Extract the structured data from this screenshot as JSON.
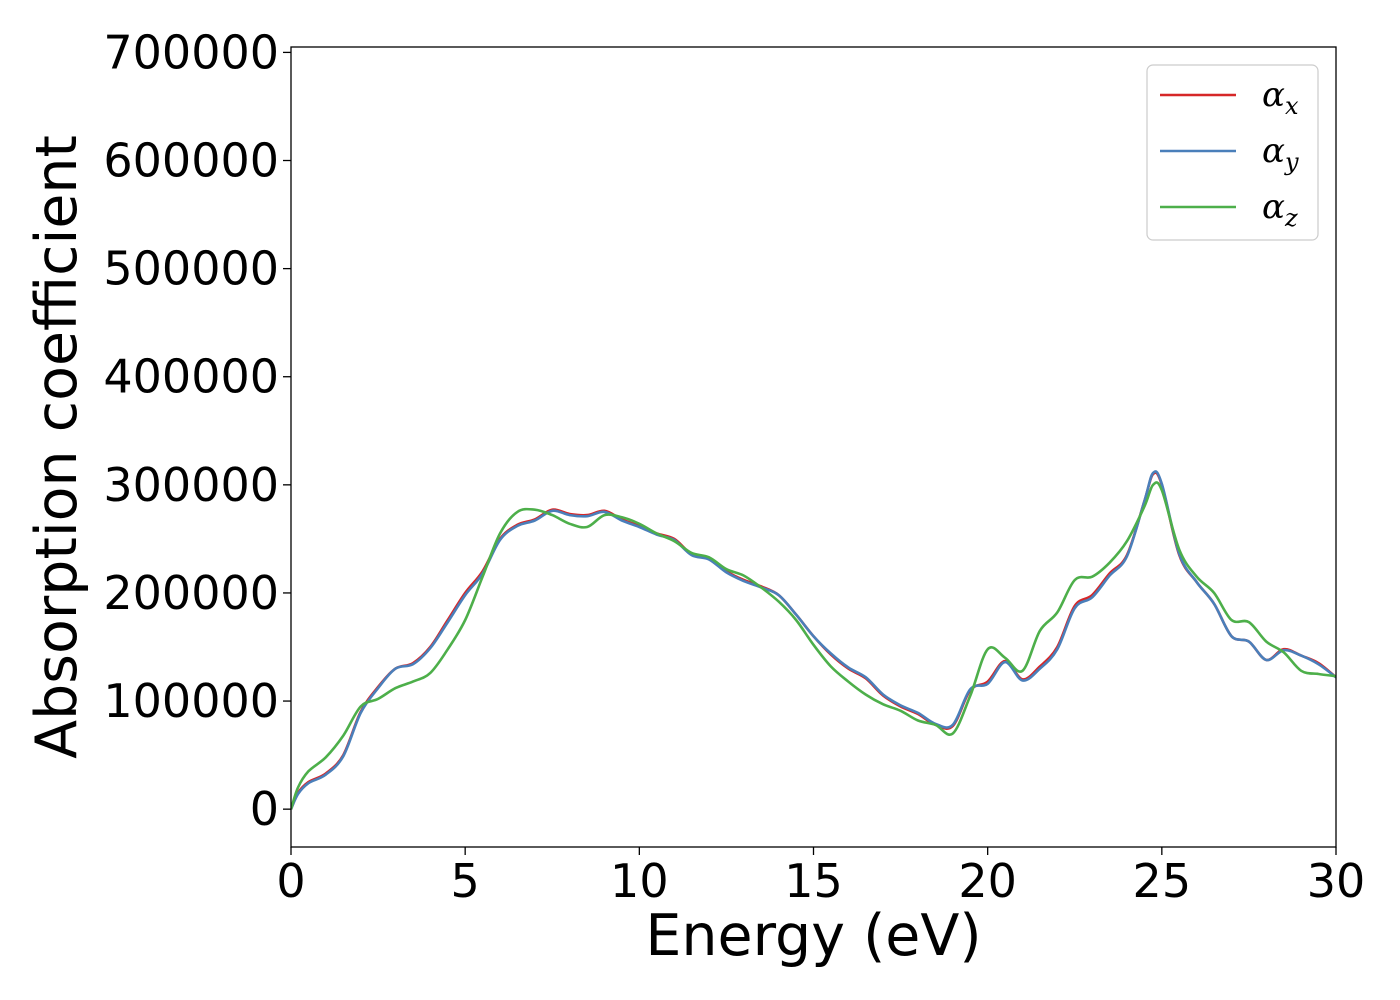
{
  "chart_data": {
    "type": "line",
    "xlabel": "Energy (eV)",
    "ylabel": "Absorption coefficient",
    "xlim": [
      0,
      30
    ],
    "ylim": [
      -35000,
      705000
    ],
    "xticks": [
      "0",
      "5",
      "10",
      "15",
      "20",
      "25",
      "30"
    ],
    "yticks": [
      "0",
      "100000",
      "200000",
      "300000",
      "400000",
      "500000",
      "600000",
      "700000"
    ],
    "grid": false,
    "legend_position": "top-right",
    "series": [
      {
        "name": "αx",
        "legend_base": "α",
        "legend_sub": "x",
        "color": "#d62728",
        "points": [
          [
            0,
            0
          ],
          [
            0.2,
            15000
          ],
          [
            0.5,
            25000
          ],
          [
            1,
            33000
          ],
          [
            1.5,
            50000
          ],
          [
            2,
            90000
          ],
          [
            2.5,
            113000
          ],
          [
            3,
            130000
          ],
          [
            3.5,
            135000
          ],
          [
            4,
            150000
          ],
          [
            4.5,
            175000
          ],
          [
            5,
            200000
          ],
          [
            5.5,
            220000
          ],
          [
            6,
            250000
          ],
          [
            6.5,
            263000
          ],
          [
            7,
            268000
          ],
          [
            7.5,
            277000
          ],
          [
            8,
            273000
          ],
          [
            8.5,
            272000
          ],
          [
            9,
            276000
          ],
          [
            9.5,
            268000
          ],
          [
            10,
            262000
          ],
          [
            10.5,
            255000
          ],
          [
            11,
            250000
          ],
          [
            11.5,
            236000
          ],
          [
            12,
            232000
          ],
          [
            12.5,
            220000
          ],
          [
            13,
            212000
          ],
          [
            13.5,
            206000
          ],
          [
            14,
            198000
          ],
          [
            14.5,
            180000
          ],
          [
            15,
            160000
          ],
          [
            15.5,
            143000
          ],
          [
            16,
            130000
          ],
          [
            16.5,
            121000
          ],
          [
            17,
            105000
          ],
          [
            17.5,
            95000
          ],
          [
            18,
            88000
          ],
          [
            18.5,
            78000
          ],
          [
            19,
            77000
          ],
          [
            19.5,
            110000
          ],
          [
            20,
            118000
          ],
          [
            20.5,
            137000
          ],
          [
            21,
            120000
          ],
          [
            21.5,
            132000
          ],
          [
            22,
            150000
          ],
          [
            22.5,
            188000
          ],
          [
            23,
            198000
          ],
          [
            23.5,
            218000
          ],
          [
            24,
            235000
          ],
          [
            24.5,
            285000
          ],
          [
            24.75,
            310000
          ],
          [
            25,
            300000
          ],
          [
            25.5,
            235000
          ],
          [
            26,
            210000
          ],
          [
            26.5,
            190000
          ],
          [
            27,
            160000
          ],
          [
            27.5,
            155000
          ],
          [
            28,
            138000
          ],
          [
            28.5,
            148000
          ],
          [
            29,
            142000
          ],
          [
            29.5,
            135000
          ],
          [
            30,
            122000
          ]
        ]
      },
      {
        "name": "αy",
        "legend_base": "α",
        "legend_sub": "y",
        "color": "#4a7fba",
        "points": [
          [
            0,
            0
          ],
          [
            0.2,
            14000
          ],
          [
            0.5,
            24000
          ],
          [
            1,
            32000
          ],
          [
            1.5,
            49000
          ],
          [
            2,
            89000
          ],
          [
            2.5,
            112000
          ],
          [
            3,
            130000
          ],
          [
            3.5,
            134000
          ],
          [
            4,
            149000
          ],
          [
            4.5,
            173000
          ],
          [
            5,
            198000
          ],
          [
            5.5,
            218000
          ],
          [
            6,
            249000
          ],
          [
            6.5,
            262000
          ],
          [
            7,
            267000
          ],
          [
            7.5,
            276000
          ],
          [
            8,
            272000
          ],
          [
            8.5,
            271000
          ],
          [
            9,
            275000
          ],
          [
            9.5,
            267000
          ],
          [
            10,
            261000
          ],
          [
            10.5,
            254000
          ],
          [
            11,
            249000
          ],
          [
            11.5,
            235000
          ],
          [
            12,
            231000
          ],
          [
            12.5,
            219000
          ],
          [
            13,
            211000
          ],
          [
            13.5,
            205000
          ],
          [
            14,
            198000
          ],
          [
            14.5,
            180000
          ],
          [
            15,
            160000
          ],
          [
            15.5,
            144000
          ],
          [
            16,
            131000
          ],
          [
            16.5,
            122000
          ],
          [
            17,
            106000
          ],
          [
            17.5,
            96000
          ],
          [
            18,
            89000
          ],
          [
            18.5,
            79000
          ],
          [
            19,
            78000
          ],
          [
            19.5,
            111000
          ],
          [
            20,
            116000
          ],
          [
            20.5,
            136000
          ],
          [
            21,
            119000
          ],
          [
            21.5,
            130000
          ],
          [
            22,
            148000
          ],
          [
            22.5,
            186000
          ],
          [
            23,
            196000
          ],
          [
            23.5,
            216000
          ],
          [
            24,
            234000
          ],
          [
            24.5,
            285000
          ],
          [
            24.75,
            311000
          ],
          [
            25,
            301000
          ],
          [
            25.5,
            236000
          ],
          [
            26,
            210000
          ],
          [
            26.5,
            190000
          ],
          [
            27,
            160000
          ],
          [
            27.5,
            155000
          ],
          [
            28,
            138000
          ],
          [
            28.5,
            147000
          ],
          [
            29,
            142000
          ],
          [
            29.5,
            134000
          ],
          [
            30,
            122000
          ]
        ]
      },
      {
        "name": "αz",
        "legend_base": "α",
        "legend_sub": "z",
        "color": "#4daf4a",
        "points": [
          [
            0,
            0
          ],
          [
            0.2,
            20000
          ],
          [
            0.5,
            35000
          ],
          [
            1,
            48000
          ],
          [
            1.5,
            68000
          ],
          [
            2,
            95000
          ],
          [
            2.5,
            102000
          ],
          [
            3,
            112000
          ],
          [
            3.5,
            118000
          ],
          [
            4,
            126000
          ],
          [
            4.5,
            148000
          ],
          [
            5,
            175000
          ],
          [
            5.5,
            215000
          ],
          [
            6,
            255000
          ],
          [
            6.5,
            275000
          ],
          [
            7,
            277000
          ],
          [
            7.5,
            272000
          ],
          [
            8,
            264000
          ],
          [
            8.5,
            261000
          ],
          [
            9,
            272000
          ],
          [
            9.5,
            270000
          ],
          [
            10,
            264000
          ],
          [
            10.5,
            255000
          ],
          [
            11,
            248000
          ],
          [
            11.5,
            237000
          ],
          [
            12,
            233000
          ],
          [
            12.5,
            222000
          ],
          [
            13,
            216000
          ],
          [
            13.5,
            205000
          ],
          [
            14,
            192000
          ],
          [
            14.5,
            175000
          ],
          [
            15,
            152000
          ],
          [
            15.5,
            132000
          ],
          [
            16,
            118000
          ],
          [
            16.5,
            106000
          ],
          [
            17,
            97000
          ],
          [
            17.5,
            91000
          ],
          [
            18,
            82000
          ],
          [
            18.5,
            78000
          ],
          [
            19,
            70000
          ],
          [
            19.5,
            105000
          ],
          [
            20,
            148000
          ],
          [
            20.5,
            140000
          ],
          [
            21,
            128000
          ],
          [
            21.5,
            165000
          ],
          [
            22,
            182000
          ],
          [
            22.5,
            212000
          ],
          [
            23,
            215000
          ],
          [
            23.5,
            228000
          ],
          [
            24,
            248000
          ],
          [
            24.5,
            280000
          ],
          [
            24.75,
            300000
          ],
          [
            25,
            295000
          ],
          [
            25.5,
            240000
          ],
          [
            26,
            215000
          ],
          [
            26.5,
            200000
          ],
          [
            27,
            175000
          ],
          [
            27.5,
            173000
          ],
          [
            28,
            155000
          ],
          [
            28.5,
            145000
          ],
          [
            29,
            128000
          ],
          [
            29.5,
            125000
          ],
          [
            30,
            123000
          ]
        ]
      }
    ]
  }
}
